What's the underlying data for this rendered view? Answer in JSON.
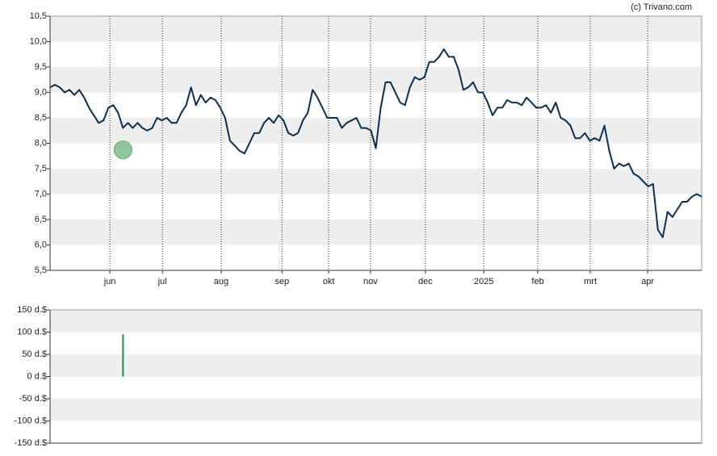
{
  "credit": "(c) Trivano.com",
  "chart_data": [
    {
      "type": "line",
      "xlim": [
        0,
        134
      ],
      "xticks": [
        {
          "value": 12.3,
          "label": "jun"
        },
        {
          "value": 23.1,
          "label": "jul"
        },
        {
          "value": 35.2,
          "label": "aug"
        },
        {
          "value": 47.7,
          "label": "sep"
        },
        {
          "value": 57.3,
          "label": "okt"
        },
        {
          "value": 65.9,
          "label": "nov"
        },
        {
          "value": 77.2,
          "label": "dec"
        },
        {
          "value": 89.2,
          "label": "2025"
        },
        {
          "value": 100.3,
          "label": "feb"
        },
        {
          "value": 111.1,
          "label": "mrt"
        },
        {
          "value": 122.9,
          "label": "apr"
        }
      ],
      "ylim": [
        5.5,
        10.5
      ],
      "yticks": [
        {
          "value": 5.5,
          "label": "5,5"
        },
        {
          "value": 6,
          "label": "6,0"
        },
        {
          "value": 6.5,
          "label": "6,5"
        },
        {
          "value": 7,
          "label": "7,0"
        },
        {
          "value": 7.5,
          "label": "7,5"
        },
        {
          "value": 8,
          "label": "8,0"
        },
        {
          "value": 8.5,
          "label": "8,5"
        },
        {
          "value": 9,
          "label": "9,0"
        },
        {
          "value": 9.5,
          "label": "9,5"
        },
        {
          "value": 10,
          "label": "10,0"
        },
        {
          "value": 10.5,
          "label": "10,5"
        }
      ],
      "grid": true,
      "series": [
        {
          "color": "#0d2f4f",
          "values": [
            9.1,
            9.15,
            9.1,
            9.0,
            9.05,
            8.95,
            9.05,
            8.9,
            8.7,
            8.55,
            8.4,
            8.45,
            8.7,
            8.75,
            8.6,
            8.3,
            8.4,
            8.3,
            8.4,
            8.3,
            8.25,
            8.3,
            8.5,
            8.45,
            8.5,
            8.4,
            8.4,
            8.6,
            8.75,
            9.1,
            8.75,
            8.95,
            8.8,
            8.9,
            8.85,
            8.7,
            8.5,
            8.05,
            7.95,
            7.85,
            7.8,
            8.0,
            8.2,
            8.2,
            8.4,
            8.5,
            8.4,
            8.55,
            8.45,
            8.2,
            8.15,
            8.2,
            8.45,
            8.6,
            9.05,
            8.9,
            8.7,
            8.5,
            8.5,
            8.5,
            8.3,
            8.4,
            8.45,
            8.5,
            8.3,
            8.3,
            8.25,
            7.9,
            8.7,
            9.2,
            9.2,
            9.0,
            8.8,
            8.75,
            9.1,
            9.3,
            9.25,
            9.3,
            9.6,
            9.6,
            9.7,
            9.85,
            9.7,
            9.7,
            9.45,
            9.05,
            9.1,
            9.2,
            9.0,
            9.0,
            8.8,
            8.55,
            8.7,
            8.7,
            8.85,
            8.8,
            8.8,
            8.75,
            8.9,
            8.8,
            8.7,
            8.7,
            8.75,
            8.6,
            8.8,
            8.5,
            8.45,
            8.35,
            8.1,
            8.1,
            8.2,
            8.05,
            8.1,
            8.05,
            8.35,
            7.85,
            7.5,
            7.6,
            7.55,
            7.6,
            7.4,
            7.35,
            7.25,
            7.15,
            7.2,
            6.3,
            6.15,
            6.65,
            6.55,
            6.7,
            6.85,
            6.85,
            6.95,
            7.0,
            6.95
          ]
        }
      ],
      "markers": [
        {
          "x": 15,
          "y": 7.87,
          "color": "#8fc79a"
        }
      ]
    },
    {
      "type": "bar",
      "xlim": [
        0,
        134
      ],
      "ylim": [
        -150,
        150
      ],
      "yticks": [
        {
          "value": -150,
          "label": "-150 d.$"
        },
        {
          "value": -100,
          "label": "-100 d.$"
        },
        {
          "value": -50,
          "label": "-50 d.$"
        },
        {
          "value": 0,
          "label": "0 d.$"
        },
        {
          "value": 50,
          "label": "50 d.$"
        },
        {
          "value": 100,
          "label": "100 d.$"
        },
        {
          "value": 150,
          "label": "150 d.$"
        }
      ],
      "grid": true,
      "x": [
        15
      ],
      "values": [
        95
      ],
      "color": "#2e8b3e"
    }
  ]
}
